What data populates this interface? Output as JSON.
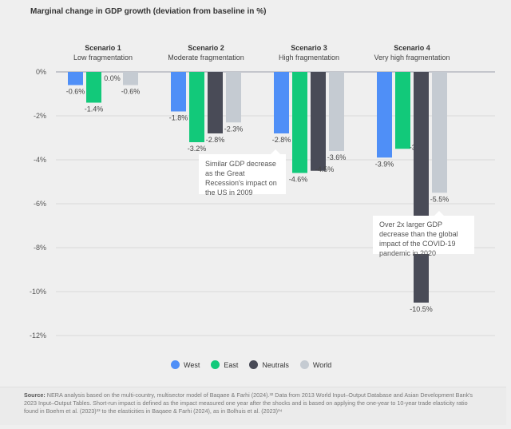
{
  "title": "Marginal change in GDP growth (deviation from baseline in %)",
  "chart_data": {
    "type": "bar",
    "title": "Marginal change in GDP growth (deviation from baseline in %)",
    "categories": [
      {
        "name": "Scenario 1",
        "subtitle": "Low fragmentation"
      },
      {
        "name": "Scenario 2",
        "subtitle": "Moderate fragmentation"
      },
      {
        "name": "Scenario 3",
        "subtitle": "High fragmentation"
      },
      {
        "name": "Scenario 4",
        "subtitle": "Very high fragmentation"
      }
    ],
    "series": [
      {
        "name": "West",
        "color": "#4f8ff7",
        "values": [
          -0.6,
          -1.8,
          -2.8,
          -3.9
        ]
      },
      {
        "name": "East",
        "color": "#12c97a",
        "values": [
          -1.4,
          -3.2,
          -4.6,
          -3.5
        ]
      },
      {
        "name": "Neutrals",
        "color": "#494b57",
        "values": [
          0.0,
          -2.8,
          -4.5,
          -10.5
        ]
      },
      {
        "name": "World",
        "color": "#c5cbd2",
        "values": [
          -0.6,
          -2.3,
          -3.6,
          -5.5
        ]
      }
    ],
    "data_labels": [
      [
        "-0.6%",
        "-1.4%",
        "0.0%",
        "-0.6%"
      ],
      [
        "-1.8%",
        "-3.2%",
        "-2.8%",
        "-2.3%"
      ],
      [
        "-2.8%",
        "-4.6%",
        "-4.5%",
        "-3.6%"
      ],
      [
        "-3.9%",
        "-3.5%",
        "-10.5%",
        "-5.5%"
      ]
    ],
    "yticks": [
      0,
      -2,
      -4,
      -6,
      -8,
      -10,
      -12
    ],
    "ytick_labels": [
      "0%",
      "-2%",
      "-4%",
      "-6%",
      "-8%",
      "-10%",
      "-12%"
    ],
    "ylim": [
      -12,
      0
    ],
    "grid": true,
    "legend_position": "bottom"
  },
  "annotations": [
    "Similar GDP decrease as the Great Recession's impact on the US in 2009",
    "Over 2x larger GDP decrease than the global impact of the COVID-19 pandemic in 2020"
  ],
  "source": {
    "label": "Source:",
    "text": "NERA analysis based on the multi-country, multisector model of Baqaee & Farhi (2024).³² Data from 2013 World Input–Output Database and Asian Development Bank's 2023 Input–Output Tables. Short-run impact is defined as the impact measured one year after the shocks and is based on applying the one-year to 10-year trade elasticity ratio found in Boehm et al. (2023)³³ to the elasticities in Baqaee & Farhi (2024), as in Bolhuis et al. (2023)³⁴"
  }
}
